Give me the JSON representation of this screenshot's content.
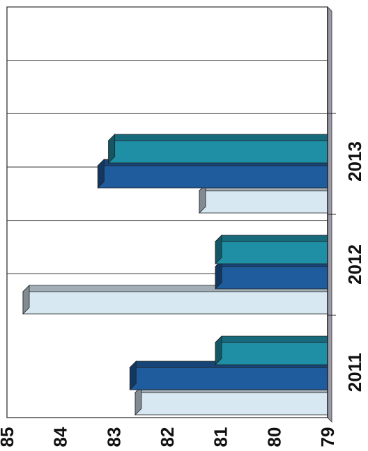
{
  "chart_data": {
    "type": "bar",
    "orientation": "horizontal-3d",
    "categories": [
      "2011",
      "2012",
      "2013"
    ],
    "series": [
      {
        "values": [
          82.6,
          84.7,
          81.4
        ],
        "color": "#d7e8f2"
      },
      {
        "values": [
          82.7,
          81.1,
          83.3
        ],
        "color": "#1f5c9e"
      },
      {
        "values": [
          81.1,
          81.1,
          83.1
        ],
        "color": "#1f8fa6"
      }
    ],
    "ticks": [
      "79",
      "80",
      "81",
      "82",
      "83",
      "84",
      "85"
    ],
    "xlim": [
      79,
      85
    ],
    "grid": true,
    "title": "",
    "xlabel": "",
    "ylabel": ""
  }
}
